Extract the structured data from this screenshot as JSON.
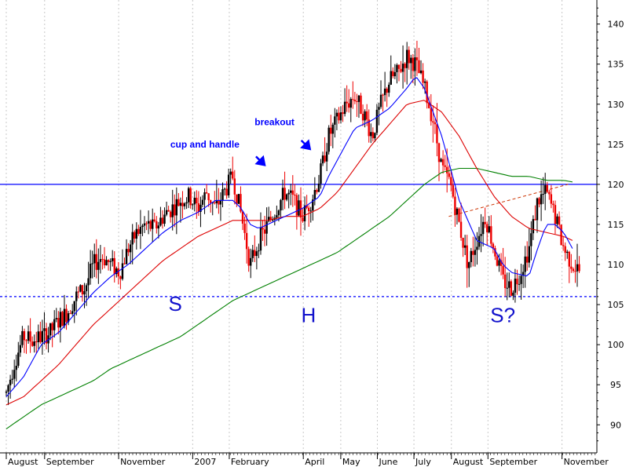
{
  "chart_data": {
    "type": "candlestick",
    "title": "",
    "xlabel": "",
    "ylabel": "",
    "ylim": [
      86.5,
      143
    ],
    "y_ticks": [
      90,
      95,
      100,
      105,
      110,
      115,
      120,
      125,
      130,
      135,
      140
    ],
    "grid": true,
    "x_months": [
      {
        "label": "August",
        "t": 0.0
      },
      {
        "label": "September",
        "t": 4.4
      },
      {
        "label": "November",
        "t": 12.9
      },
      {
        "label": "2007",
        "t": 21.4
      },
      {
        "label": "February",
        "t": 25.6
      },
      {
        "label": "April",
        "t": 34.1
      },
      {
        "label": "May",
        "t": 38.4
      },
      {
        "label": "June",
        "t": 42.6
      },
      {
        "label": "July",
        "t": 46.8
      },
      {
        "label": "August",
        "t": 51.1
      },
      {
        "label": "September",
        "t": 55.3
      },
      {
        "label": "November",
        "t": 63.8
      }
    ],
    "x_range": [
      0,
      66
    ],
    "price_path": [
      [
        0,
        94
      ],
      [
        1,
        98
      ],
      [
        2,
        101
      ],
      [
        3,
        100.5
      ],
      [
        4,
        101
      ],
      [
        5,
        101.5
      ],
      [
        6,
        103
      ],
      [
        7,
        104
      ],
      [
        8,
        106
      ],
      [
        9,
        107
      ],
      [
        10,
        110
      ],
      [
        11,
        111
      ],
      [
        12,
        110
      ],
      [
        13,
        109
      ],
      [
        14,
        112
      ],
      [
        15,
        114
      ],
      [
        16,
        115
      ],
      [
        17,
        114.5
      ],
      [
        18,
        116
      ],
      [
        19,
        117
      ],
      [
        20,
        118
      ],
      [
        21,
        118.5
      ],
      [
        22,
        117
      ],
      [
        23,
        119
      ],
      [
        24,
        117
      ],
      [
        25,
        119
      ],
      [
        26,
        121
      ],
      [
        27,
        116
      ],
      [
        28,
        110
      ],
      [
        29,
        113
      ],
      [
        30,
        115
      ],
      [
        31,
        117
      ],
      [
        32,
        119
      ],
      [
        33,
        118
      ],
      [
        34,
        116
      ],
      [
        35,
        118
      ],
      [
        36,
        121
      ],
      [
        37,
        126
      ],
      [
        38,
        128
      ],
      [
        39,
        130
      ],
      [
        40,
        131
      ],
      [
        41,
        129
      ],
      [
        42,
        126
      ],
      [
        43,
        130
      ],
      [
        44,
        133
      ],
      [
        45,
        134
      ],
      [
        46,
        136
      ],
      [
        47,
        135
      ],
      [
        48,
        132
      ],
      [
        49,
        128
      ],
      [
        50,
        122
      ],
      [
        51,
        120
      ],
      [
        52,
        115
      ],
      [
        53,
        110
      ],
      [
        54,
        113
      ],
      [
        55,
        116
      ],
      [
        56,
        112
      ],
      [
        57,
        108
      ],
      [
        58,
        107
      ],
      [
        59,
        109
      ],
      [
        60,
        112
      ],
      [
        61,
        118
      ],
      [
        62,
        119
      ],
      [
        63,
        116
      ],
      [
        64,
        112
      ],
      [
        65,
        110
      ],
      [
        66,
        109
      ]
    ],
    "sma_short": [
      [
        0,
        93.5
      ],
      [
        2,
        96
      ],
      [
        4,
        100
      ],
      [
        6,
        101.5
      ],
      [
        8,
        104
      ],
      [
        10,
        106.5
      ],
      [
        12,
        108.5
      ],
      [
        14,
        110
      ],
      [
        16,
        112
      ],
      [
        18,
        114
      ],
      [
        20,
        115.5
      ],
      [
        22,
        116.5
      ],
      [
        24,
        118
      ],
      [
        26,
        118
      ],
      [
        27,
        117
      ],
      [
        28,
        115
      ],
      [
        29,
        114.5
      ],
      [
        30,
        115
      ],
      [
        32,
        116
      ],
      [
        34,
        117
      ],
      [
        36,
        118.5
      ],
      [
        37,
        121
      ],
      [
        38,
        123
      ],
      [
        40,
        127
      ],
      [
        42,
        128
      ],
      [
        44,
        129.5
      ],
      [
        46,
        132
      ],
      [
        47,
        133.5
      ],
      [
        48,
        132
      ],
      [
        50,
        126
      ],
      [
        52,
        118
      ],
      [
        54,
        113
      ],
      [
        56,
        112
      ],
      [
        57,
        110
      ],
      [
        58,
        109
      ],
      [
        60,
        108.5
      ],
      [
        61,
        112
      ],
      [
        62,
        115
      ],
      [
        63,
        115
      ],
      [
        64,
        114
      ],
      [
        65,
        112
      ]
    ],
    "sma_mid": [
      [
        0,
        92.5
      ],
      [
        2,
        93.5
      ],
      [
        4,
        95.5
      ],
      [
        6,
        97.5
      ],
      [
        8,
        100
      ],
      [
        10,
        102.5
      ],
      [
        12,
        104.5
      ],
      [
        14,
        106.5
      ],
      [
        16,
        108.5
      ],
      [
        18,
        110.5
      ],
      [
        20,
        112
      ],
      [
        22,
        113.5
      ],
      [
        24,
        114.5
      ],
      [
        26,
        115.5
      ],
      [
        28,
        115.5
      ],
      [
        30,
        115.5
      ],
      [
        32,
        116
      ],
      [
        34,
        116
      ],
      [
        36,
        117
      ],
      [
        38,
        119
      ],
      [
        40,
        122
      ],
      [
        42,
        125
      ],
      [
        44,
        127.5
      ],
      [
        46,
        130
      ],
      [
        48,
        130.5
      ],
      [
        50,
        129
      ],
      [
        52,
        126
      ],
      [
        54,
        122
      ],
      [
        56,
        118.5
      ],
      [
        58,
        116
      ],
      [
        60,
        114.5
      ],
      [
        62,
        114
      ],
      [
        64,
        113.5
      ],
      [
        65,
        113
      ]
    ],
    "sma_long": [
      [
        0,
        89.5
      ],
      [
        2,
        91
      ],
      [
        4,
        92.5
      ],
      [
        6,
        93.5
      ],
      [
        8,
        94.5
      ],
      [
        10,
        95.5
      ],
      [
        12,
        97
      ],
      [
        14,
        98
      ],
      [
        16,
        99
      ],
      [
        18,
        100
      ],
      [
        20,
        101
      ],
      [
        22,
        102.5
      ],
      [
        24,
        104
      ],
      [
        26,
        105.5
      ],
      [
        28,
        106.5
      ],
      [
        30,
        107.5
      ],
      [
        32,
        108.5
      ],
      [
        34,
        109.5
      ],
      [
        36,
        110.5
      ],
      [
        38,
        111.5
      ],
      [
        40,
        113
      ],
      [
        42,
        114.5
      ],
      [
        44,
        116
      ],
      [
        46,
        118
      ],
      [
        48,
        120
      ],
      [
        50,
        121.5
      ],
      [
        52,
        122
      ],
      [
        54,
        122
      ],
      [
        56,
        121.5
      ],
      [
        58,
        121
      ],
      [
        60,
        121
      ],
      [
        62,
        120.5
      ],
      [
        64,
        120.5
      ],
      [
        65,
        120.3
      ]
    ],
    "resistance_line": 120,
    "support_line": 106,
    "neckline_dashed": {
      "from": [
        50.8,
        116
      ],
      "to": [
        64.5,
        120
      ]
    },
    "annotations": [
      {
        "text": "cup and handle",
        "t": 22.8,
        "y": 124.6,
        "size": "small"
      },
      {
        "text": "breakout",
        "t": 30.8,
        "y": 127.4,
        "size": "small"
      },
      {
        "text": "S",
        "t": 19.4,
        "y": 104.2,
        "size": "big"
      },
      {
        "text": "H",
        "t": 34.7,
        "y": 102.8,
        "size": "big"
      },
      {
        "text": "S?",
        "t": 57.0,
        "y": 102.8,
        "size": "big"
      }
    ],
    "arrows": [
      {
        "t": 29.3,
        "y": 122.6
      },
      {
        "t": 34.5,
        "y": 124.6
      }
    ],
    "colors": {
      "up": "#000000",
      "down": "#ee0000",
      "sma_short": "#0000ff",
      "sma_mid": "#dd0000",
      "sma_long": "#008000",
      "resistance": "#0000ff",
      "support": "#0000ff",
      "neckline": "#cc3300",
      "grid": "#c8c8c8"
    }
  }
}
